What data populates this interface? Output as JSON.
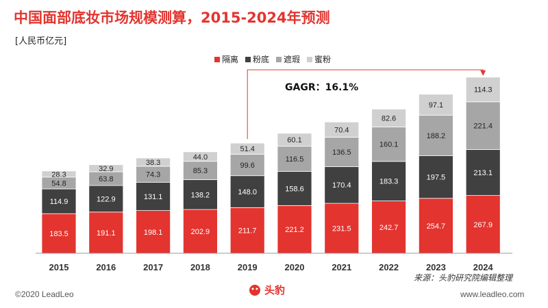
{
  "header": {
    "title": "中国面部底妆市场规模测算，2015-2024年预测",
    "unit": "[人民币亿元]"
  },
  "legend": [
    {
      "label": "隔离",
      "color": "#e3342f"
    },
    {
      "label": "粉底",
      "color": "#404040"
    },
    {
      "label": "遮瑕",
      "color": "#a6a6a6"
    },
    {
      "label": "蜜粉",
      "color": "#d0d0d0"
    }
  ],
  "annotation": {
    "text": "GAGR：16.1%"
  },
  "chart_data": {
    "type": "bar",
    "stacked": true,
    "categories": [
      "2015",
      "2016",
      "2017",
      "2018",
      "2019",
      "2020",
      "2021",
      "2022",
      "2023",
      "2024"
    ],
    "series": [
      {
        "name": "隔离",
        "color": "#e3342f",
        "values": [
          183.5,
          191.1,
          198.1,
          202.9,
          211.7,
          221.2,
          231.5,
          242.7,
          254.7,
          267.9
        ]
      },
      {
        "name": "粉底",
        "color": "#404040",
        "values": [
          114.9,
          122.9,
          131.1,
          138.2,
          148.0,
          158.6,
          170.4,
          183.3,
          197.5,
          213.1
        ]
      },
      {
        "name": "遮瑕",
        "color": "#a6a6a6",
        "values": [
          54.8,
          63.8,
          74.3,
          85.3,
          99.6,
          116.5,
          136.5,
          160.1,
          188.2,
          221.4
        ]
      },
      {
        "name": "蜜粉",
        "color": "#d0d0d0",
        "values": [
          28.3,
          32.9,
          38.3,
          44.0,
          51.4,
          60.1,
          70.4,
          82.6,
          97.1,
          114.3
        ]
      }
    ],
    "title": "中国面部底妆市场规模测算，2015-2024年预测",
    "ylabel": "[人民币亿元]",
    "grid": false
  },
  "footer": {
    "source": "来源：头豹研究院编辑整理",
    "copyright": "©2020 LeadLeo",
    "website": "www.leadleo.com",
    "logo_text": "头豹"
  }
}
